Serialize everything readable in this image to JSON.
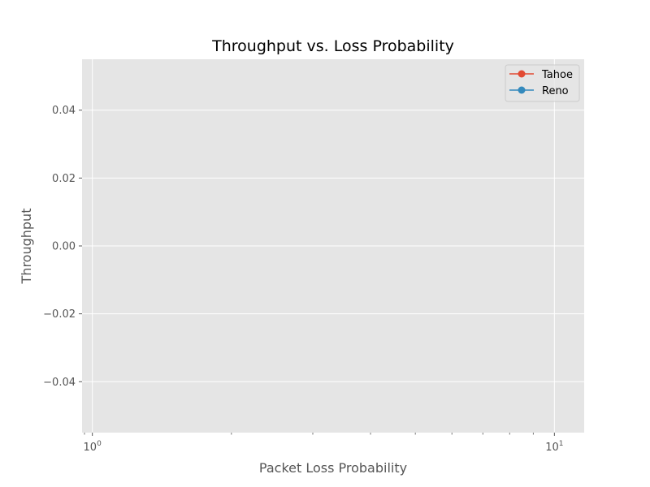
{
  "chart_data": {
    "type": "line",
    "title": "Throughput vs. Loss Probability",
    "xlabel": "Packet Loss Probability",
    "ylabel": "Throughput",
    "xscale": "log",
    "xlim": [
      0.95,
      11.6
    ],
    "ylim": [
      -0.055,
      0.055
    ],
    "x_ticks_major": [
      {
        "value": 1,
        "base": "10",
        "exp": "0"
      },
      {
        "value": 10,
        "base": "10",
        "exp": "1"
      }
    ],
    "y_ticks": [
      {
        "value": 0.04,
        "label": "0.04"
      },
      {
        "value": 0.02,
        "label": "0.02"
      },
      {
        "value": 0.0,
        "label": "0.00"
      },
      {
        "value": -0.02,
        "label": "−0.02"
      },
      {
        "value": -0.04,
        "label": "−0.04"
      }
    ],
    "grid": true,
    "legend_position": "top-right",
    "series": [
      {
        "name": "Tahoe",
        "color": "#E24A33",
        "marker": "circle",
        "x": [],
        "y": []
      },
      {
        "name": "Reno",
        "color": "#348ABD",
        "marker": "circle",
        "x": [],
        "y": []
      }
    ]
  },
  "colors": {
    "plot_background": "#E5E5E5",
    "grid": "#FFFFFF",
    "tick_text": "#555555",
    "title_text": "#000000"
  }
}
